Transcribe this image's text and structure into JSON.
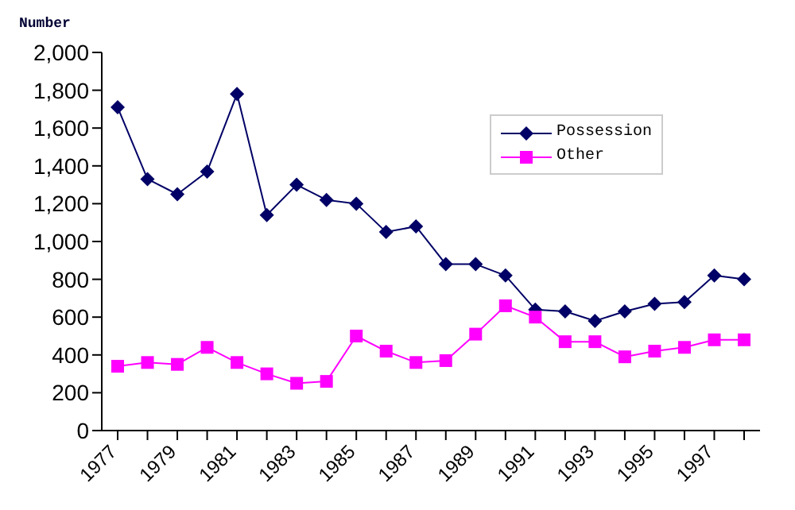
{
  "chart_data": {
    "type": "line",
    "ylabel": "Number",
    "categories": [
      "1977",
      null,
      "1979",
      null,
      "1981",
      null,
      "1983",
      null,
      "1985",
      null,
      "1987",
      null,
      "1989",
      null,
      "1991",
      null,
      "1993",
      null,
      "1995",
      null,
      "1997",
      null
    ],
    "series": [
      {
        "name": "Possession",
        "color": "#000066",
        "marker": "diamond",
        "values": [
          1710,
          1330,
          1250,
          1370,
          1780,
          1140,
          1300,
          1220,
          1200,
          1050,
          1080,
          880,
          880,
          820,
          640,
          630,
          580,
          630,
          670,
          680,
          820,
          800
        ]
      },
      {
        "name": "Other",
        "color": "#ff00ff",
        "marker": "square",
        "values": [
          340,
          360,
          350,
          440,
          360,
          300,
          250,
          260,
          500,
          420,
          360,
          370,
          510,
          660,
          600,
          470,
          470,
          390,
          420,
          440,
          480,
          480
        ]
      }
    ],
    "ylim": [
      0,
      2000
    ],
    "yticks": [
      {
        "value": 0,
        "label": "0"
      },
      {
        "value": 200,
        "label": "200"
      },
      {
        "value": 400,
        "label": "400"
      },
      {
        "value": 600,
        "label": "600"
      },
      {
        "value": 800,
        "label": "800"
      },
      {
        "value": 1000,
        "label": "1,000"
      },
      {
        "value": 1200,
        "label": "1,200"
      },
      {
        "value": 1400,
        "label": "1,400"
      },
      {
        "value": 1600,
        "label": "1,600"
      },
      {
        "value": 1800,
        "label": "1,800"
      },
      {
        "value": 2000,
        "label": "2,000"
      }
    ],
    "grid": false,
    "legend": "top right"
  }
}
